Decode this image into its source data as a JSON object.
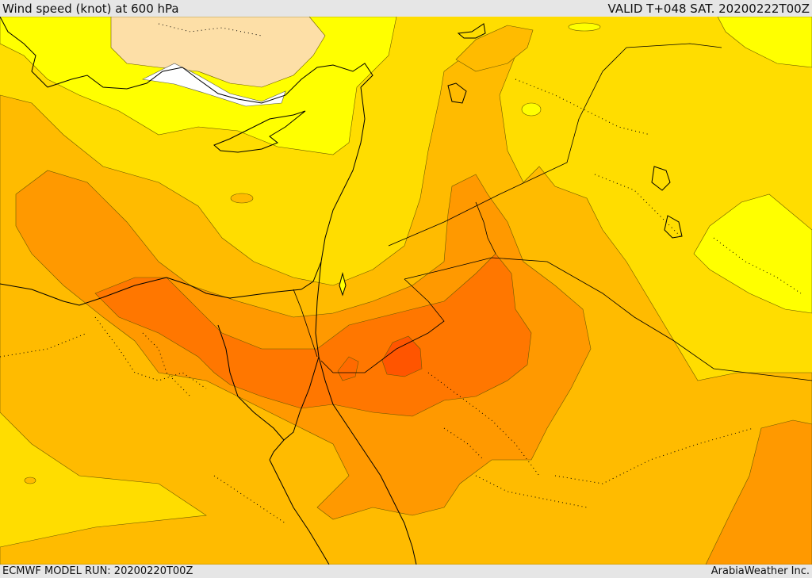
{
  "header": {
    "title": "Wind speed (knot) at 600 hPa",
    "valid": "VALID T+048 SAT. 20200222T00Z"
  },
  "footer": {
    "model_run": "ECMWF MODEL RUN: 20200220T00Z",
    "credit": "ArabiaWeather Inc."
  },
  "legend_colors": {
    "calm_white": "#ffffff",
    "very_light": "#fddfa7",
    "light": "#ffff00",
    "low": "#ffdd00",
    "moderate": "#ffbb00",
    "fresh": "#ff9900",
    "strong": "#ff7700",
    "core": "#ff5500",
    "outline": "#000000"
  }
}
